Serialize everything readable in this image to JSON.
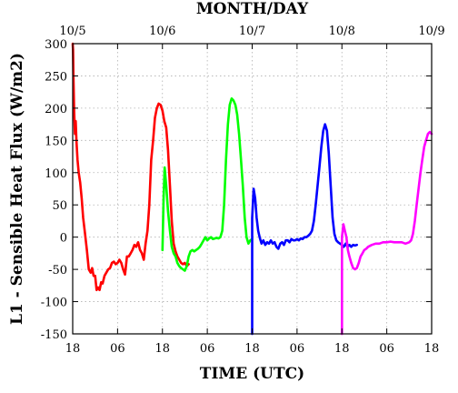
{
  "chart_data": {
    "type": "line",
    "title": "",
    "xlabel": "TIME (UTC)",
    "ylabel": "L1 - Sensible Heat Flux (W/m2)",
    "top_axis_label": "MONTH/DAY",
    "xlim": [
      0,
      96
    ],
    "ylim": [
      -150,
      300
    ],
    "grid": true,
    "legend": "none",
    "x_units": "hours since 10/5 18 UTC",
    "x_ticks": [
      {
        "value": 0,
        "label": "18"
      },
      {
        "value": 12,
        "label": "06"
      },
      {
        "value": 24,
        "label": "18"
      },
      {
        "value": 36,
        "label": "06"
      },
      {
        "value": 48,
        "label": "18"
      },
      {
        "value": 60,
        "label": "06"
      },
      {
        "value": 72,
        "label": "18"
      },
      {
        "value": 84,
        "label": "06"
      },
      {
        "value": 96,
        "label": "18"
      }
    ],
    "top_ticks": [
      {
        "value": 0,
        "label": "10/5"
      },
      {
        "value": 24,
        "label": "10/6"
      },
      {
        "value": 48,
        "label": "10/7"
      },
      {
        "value": 72,
        "label": "10/8"
      },
      {
        "value": 96,
        "label": "10/9"
      }
    ],
    "y_ticks": [
      -150,
      -100,
      -50,
      0,
      50,
      100,
      150,
      200,
      250,
      300
    ],
    "series": [
      {
        "color": "#ff0000",
        "x": [
          0,
          0.1,
          0.2,
          0.4,
          0.6,
          0.8,
          1.0,
          1.3,
          1.6,
          2.0,
          2.4,
          2.8,
          3.3,
          3.8,
          4.3,
          4.8,
          5.2,
          5.6,
          6.0,
          6.4,
          6.8,
          7.2,
          7.6,
          8.0,
          8.5,
          9.0,
          9.5,
          10.0,
          10.5,
          11.0,
          11.5,
          12.0,
          12.5,
          13.0,
          13.5,
          14.0,
          14.5,
          15.0,
          15.5,
          16.0,
          16.5,
          17.0,
          17.5,
          18.0,
          18.5,
          19.0,
          19.5,
          20.0,
          20.5,
          21.0,
          21.5,
          22.0,
          22.5,
          23.0,
          23.5,
          24.0,
          24.5,
          25.0,
          25.5,
          26.0,
          26.5,
          27.0,
          27.5,
          28.0,
          28.5,
          29.0,
          29.5,
          30.0,
          30.5,
          31.0
        ],
        "y": [
          300,
          290,
          250,
          195,
          160,
          180,
          150,
          120,
          100,
          85,
          60,
          30,
          5,
          -20,
          -50,
          -55,
          -48,
          -60,
          -60,
          -82,
          -78,
          -82,
          -70,
          -72,
          -60,
          -55,
          -50,
          -48,
          -40,
          -38,
          -42,
          -40,
          -35,
          -40,
          -50,
          -58,
          -30,
          -30,
          -25,
          -20,
          -12,
          -15,
          -8,
          -20,
          -25,
          -35,
          -10,
          10,
          50,
          120,
          150,
          185,
          200,
          207,
          205,
          196,
          180,
          170,
          135,
          80,
          25,
          -10,
          -22,
          -30,
          -35,
          -40,
          -42,
          -40,
          -45,
          -42
        ]
      },
      {
        "color": "#00ff00",
        "x": [
          24,
          24.3,
          24.6,
          25.0,
          25.5,
          26.0,
          26.5,
          27.0,
          27.5,
          28.0,
          28.5,
          29.0,
          29.5,
          30.0,
          30.5,
          31.0,
          31.5,
          32.0,
          32.5,
          33.0,
          33.5,
          34.0,
          34.5,
          35.0,
          35.5,
          36.0,
          36.5,
          37.0,
          37.5,
          38.0,
          38.5,
          39.0,
          39.5,
          40.0,
          40.5,
          41.0,
          41.5,
          42.0,
          42.5,
          43.0,
          43.5,
          44.0,
          44.5,
          45.0,
          45.5,
          46.0,
          46.5,
          47.0,
          47.5,
          48.0
        ],
        "y": [
          -20,
          60,
          108,
          80,
          40,
          10,
          -15,
          -25,
          -30,
          -40,
          -45,
          -48,
          -50,
          -52,
          -45,
          -30,
          -22,
          -20,
          -22,
          -20,
          -18,
          -15,
          -10,
          -5,
          0,
          -5,
          -2,
          0,
          -3,
          -2,
          -1,
          -2,
          0,
          10,
          50,
          120,
          175,
          205,
          215,
          212,
          205,
          190,
          160,
          120,
          80,
          30,
          0,
          -10,
          -5,
          -3
        ]
      },
      {
        "color": "#0000ff",
        "x": [
          48,
          48.001,
          48.4,
          48.8,
          49.2,
          49.6,
          50.0,
          50.5,
          51.0,
          51.5,
          52.0,
          52.5,
          53.0,
          53.5,
          54.0,
          54.5,
          55.0,
          55.5,
          56.0,
          56.5,
          57.0,
          57.5,
          58.0,
          58.5,
          59.0,
          59.5,
          60.0,
          60.5,
          61.0,
          61.5,
          62.0,
          62.5,
          63.0,
          63.5,
          64.0,
          64.5,
          65.0,
          65.5,
          66.0,
          66.5,
          67.0,
          67.5,
          68.0,
          68.5,
          69.0,
          69.5,
          70.0,
          70.5,
          71.0,
          71.5,
          72.0,
          72.5,
          73.0,
          73.5,
          74.0,
          74.5,
          75.0,
          75.5,
          76.0
        ],
        "y": [
          -150,
          30,
          75,
          60,
          30,
          10,
          0,
          -10,
          -5,
          -12,
          -8,
          -10,
          -5,
          -10,
          -8,
          -15,
          -18,
          -10,
          -8,
          -12,
          -5,
          -5,
          -8,
          -3,
          -5,
          -5,
          -3,
          -5,
          -2,
          -3,
          0,
          0,
          2,
          5,
          10,
          25,
          50,
          80,
          110,
          140,
          165,
          175,
          165,
          130,
          80,
          30,
          5,
          -5,
          -8,
          -10,
          -12,
          -15,
          -10,
          -15,
          -12,
          -15,
          -12,
          -13,
          -12
        ]
      },
      {
        "color": "#ff00ff",
        "x": [
          72,
          72.001,
          72.4,
          72.8,
          73.2,
          73.6,
          74.0,
          74.5,
          75.0,
          75.5,
          76.0,
          76.5,
          77.0,
          77.5,
          78.0,
          78.5,
          79.0,
          80.0,
          81.0,
          82.0,
          83.0,
          84.0,
          85.0,
          86.0,
          87.0,
          88.0,
          89.0,
          90.0,
          90.5,
          91.0,
          91.5,
          92.0,
          92.5,
          93.0,
          93.5,
          94.0,
          94.5,
          95.0,
          95.5,
          96.0
        ],
        "y": [
          -150,
          0,
          20,
          10,
          0,
          -20,
          -30,
          -40,
          -48,
          -50,
          -48,
          -40,
          -30,
          -25,
          -20,
          -18,
          -15,
          -12,
          -10,
          -10,
          -8,
          -8,
          -7,
          -8,
          -8,
          -8,
          -10,
          -8,
          -5,
          5,
          25,
          50,
          75,
          100,
          120,
          140,
          150,
          160,
          163,
          160
        ]
      }
    ]
  }
}
